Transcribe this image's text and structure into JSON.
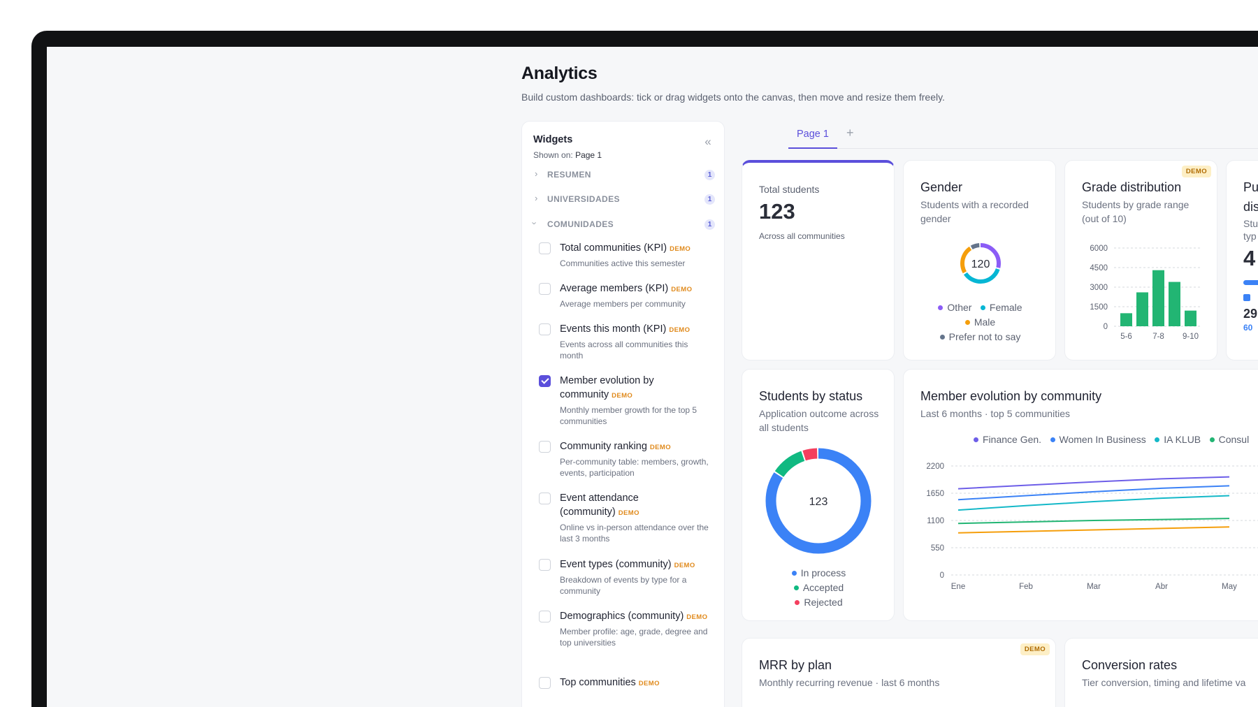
{
  "page": {
    "title": "Analytics",
    "subtitle": "Build custom dashboards: tick or drag widgets onto the canvas, then move and resize them freely."
  },
  "widgets_panel": {
    "title": "Widgets",
    "shown_on_label": "Shown on:",
    "shown_on_value": "Page 1",
    "collapse_icon": "double-chevron-left-icon",
    "sections": [
      {
        "label": "RESUMEN",
        "count": "1",
        "expanded": false
      },
      {
        "label": "UNIVERSIDADES",
        "count": "1",
        "expanded": false
      },
      {
        "label": "COMUNIDADES",
        "count": "1",
        "expanded": true
      }
    ],
    "items": [
      {
        "name": "Total communities (KPI)",
        "tag": "DEMO",
        "desc": "Communities active this semester",
        "checked": false
      },
      {
        "name": "Average members (KPI)",
        "tag": "DEMO",
        "desc": "Average members per community",
        "checked": false
      },
      {
        "name": "Events this month (KPI)",
        "tag": "DEMO",
        "desc": "Events across all communities this month",
        "checked": false
      },
      {
        "name": "Member evolution by community",
        "tag": "DEMO",
        "desc": "Monthly member growth for the top 5 communities",
        "checked": true
      },
      {
        "name": "Community ranking",
        "tag": "DEMO",
        "desc": "Per-community table: members, growth, events, participation",
        "checked": false
      },
      {
        "name": "Event attendance (community)",
        "tag": "DEMO",
        "desc": "Online vs in-person attendance over the last 3 months",
        "checked": false
      },
      {
        "name": "Event types (community)",
        "tag": "DEMO",
        "desc": "Breakdown of events by type for a community",
        "checked": false
      },
      {
        "name": "Demographics (community)",
        "tag": "DEMO",
        "desc": "Member profile: age, grade, degree and top universities",
        "checked": false
      },
      {
        "name": "Top communities",
        "tag": "DEMO",
        "desc": "",
        "checked": false
      }
    ]
  },
  "tabs": {
    "active": "Page 1",
    "add_icon": "plus-icon"
  },
  "cards": {
    "total_students": {
      "label": "Total students",
      "value": "123",
      "note": "Across all communities"
    },
    "gender": {
      "title": "Gender",
      "subtitle": "Students with a recorded gender",
      "center": "120",
      "legend": [
        "Other",
        "Female",
        "Male",
        "Prefer not to say"
      ],
      "colors": {
        "Other": "#8b5cf6",
        "Female": "#06b6d4",
        "Male": "#f59e0b",
        "Prefer not to say": "#64748b"
      }
    },
    "grade": {
      "title": "Grade distribution",
      "subtitle": "Students by grade range (out of 10)",
      "badge": "DEMO",
      "ticks": [
        "6000",
        "4500",
        "3000",
        "1500",
        "0"
      ],
      "xlabels": [
        "5-6",
        "7-8",
        "9-10"
      ]
    },
    "partial": {
      "title_line1": "Pu",
      "title_line2": "dis",
      "sub_line1": "Stu",
      "sub_line2": "typ",
      "value": "4",
      "row_value": "29",
      "row_pct": "60"
    },
    "status": {
      "title": "Students by status",
      "subtitle": "Application outcome across all students",
      "center": "123",
      "legend": [
        "In process",
        "Accepted",
        "Rejected"
      ],
      "colors": {
        "In process": "#3b82f6",
        "Accepted": "#10b981",
        "Rejected": "#f43f5e"
      }
    },
    "evolution": {
      "title": "Member evolution by community",
      "subtitle": "Last 6 months · top 5 communities",
      "legend": [
        "Finance Gen.",
        "Women In Business",
        "IA KLUB",
        "Consul"
      ]
    },
    "mrr": {
      "title": "MRR by plan",
      "subtitle": "Monthly recurring revenue · last 6 months",
      "badge": "DEMO"
    },
    "conversion": {
      "title": "Conversion rates",
      "subtitle": "Tier conversion, timing and lifetime va"
    }
  },
  "chart_data": [
    {
      "type": "pie",
      "title": "Gender",
      "labels": [
        "Other",
        "Female",
        "Male",
        "Prefer not to say"
      ],
      "values": [
        36,
        44,
        30,
        10
      ],
      "center_label": "120"
    },
    {
      "type": "bar",
      "title": "Grade distribution",
      "categories": [
        "5-6",
        "6-7",
        "7-8",
        "8-9",
        "9-10"
      ],
      "values": [
        1000,
        2600,
        4300,
        3400,
        1200
      ],
      "ylim": [
        0,
        6000
      ],
      "yticks": [
        0,
        1500,
        3000,
        4500,
        6000
      ],
      "color": "#22b573"
    },
    {
      "type": "pie",
      "title": "Students by status",
      "labels": [
        "In process",
        "Accepted",
        "Rejected"
      ],
      "values": [
        104,
        13,
        6
      ],
      "center_label": "123"
    },
    {
      "type": "line",
      "title": "Member evolution by community",
      "categories": [
        "Ene",
        "Feb",
        "Mar",
        "Abr",
        "May"
      ],
      "ylim": [
        0,
        2200
      ],
      "yticks": [
        0,
        550,
        1100,
        1650,
        2200
      ],
      "series": [
        {
          "name": "Finance Gen.",
          "color": "#6d5ee8",
          "values": [
            1740,
            1810,
            1880,
            1940,
            1980
          ]
        },
        {
          "name": "Women In Business",
          "color": "#3b82f6",
          "values": [
            1520,
            1600,
            1680,
            1750,
            1800
          ]
        },
        {
          "name": "IA KLUB",
          "color": "#14b8c8",
          "values": [
            1310,
            1400,
            1480,
            1550,
            1600
          ]
        },
        {
          "name": "Consul",
          "color": "#22b573",
          "values": [
            1040,
            1070,
            1100,
            1120,
            1140
          ]
        },
        {
          "color": "#f59e0b",
          "values": [
            850,
            880,
            910,
            940,
            970
          ]
        }
      ]
    }
  ]
}
